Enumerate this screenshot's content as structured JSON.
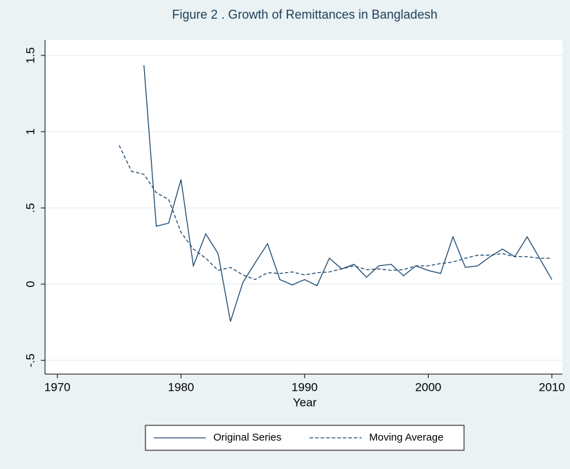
{
  "chart_data": {
    "type": "line",
    "title": "Figure 2 . Growth of Remittances in Bangladesh",
    "x_label": "Year",
    "x": [
      1975,
      1976,
      1977,
      1978,
      1979,
      1980,
      1981,
      1982,
      1983,
      1984,
      1985,
      1986,
      1987,
      1988,
      1989,
      1990,
      1991,
      1992,
      1993,
      1994,
      1995,
      1996,
      1997,
      1998,
      1999,
      2000,
      2001,
      2002,
      2003,
      2004,
      2005,
      2006,
      2007,
      2008,
      2009,
      2010
    ],
    "series": [
      {
        "name": "Original Series",
        "color": "#1a476f",
        "dash": "solid",
        "values": [
          null,
          null,
          1.436,
          0.38,
          0.4,
          0.686,
          0.12,
          0.33,
          0.2,
          -0.245,
          0.01,
          0.14,
          0.265,
          0.03,
          -0.005,
          0.03,
          -0.01,
          0.17,
          0.1,
          0.13,
          0.045,
          0.12,
          0.13,
          0.055,
          0.12,
          0.09,
          0.07,
          0.31,
          0.11,
          0.12,
          0.18,
          0.23,
          0.18,
          0.31,
          0.17,
          0.03
        ]
      },
      {
        "name": "Moving Average",
        "color": "#1a476f",
        "dash": "dashed",
        "values": [
          0.91,
          0.74,
          0.72,
          0.6,
          0.555,
          0.34,
          0.23,
          0.17,
          0.09,
          0.11,
          0.06,
          0.03,
          0.075,
          0.07,
          0.08,
          0.06,
          0.075,
          0.08,
          0.1,
          0.12,
          0.095,
          0.1,
          0.09,
          0.095,
          0.12,
          0.12,
          0.135,
          0.145,
          0.17,
          0.19,
          0.19,
          0.2,
          0.18,
          0.18,
          0.17,
          0.17
        ]
      }
    ],
    "xlim": [
      1969,
      2010.85
    ],
    "xticks": [
      1970,
      1980,
      1990,
      2000,
      2010
    ],
    "ylim": [
      -0.59,
      1.6
    ],
    "yticks": [
      {
        "value": -0.5,
        "label": "-.5"
      },
      0,
      {
        "value": 0.5,
        "label": ".5"
      },
      1,
      1.5
    ],
    "grid": true,
    "legend": "bottom"
  }
}
